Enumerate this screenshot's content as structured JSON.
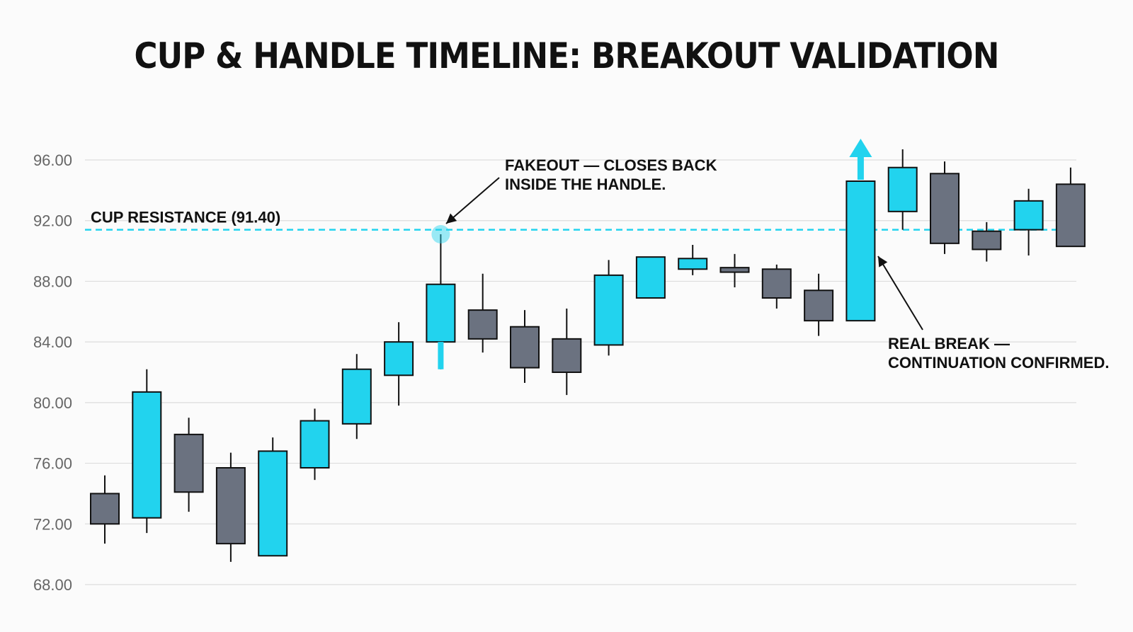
{
  "title": "CUP & HANDLE TIMELINE: BREAKOUT VALIDATION",
  "colors": {
    "bull": "#22d3ee",
    "bear": "#6b7280",
    "outline": "#111111",
    "resistance": "#22d3ee",
    "grid": "#dddddd",
    "tick_text": "#666666"
  },
  "chart_data": {
    "type": "candlestick",
    "title": "CUP & HANDLE TIMELINE: BREAKOUT VALIDATION",
    "xlabel": "",
    "ylabel": "",
    "ylim": [
      68,
      96
    ],
    "yticks": [
      "68.00",
      "72.00",
      "76.00",
      "80.00",
      "84.00",
      "88.00",
      "92.00",
      "96.00"
    ],
    "grid": true,
    "candles": [
      {
        "open": 74.0,
        "high": 75.2,
        "low": 70.7,
        "close": 72.0
      },
      {
        "open": 72.4,
        "high": 82.2,
        "low": 71.4,
        "close": 80.7
      },
      {
        "open": 77.9,
        "high": 79.0,
        "low": 72.8,
        "close": 74.1
      },
      {
        "open": 75.7,
        "high": 76.7,
        "low": 69.5,
        "close": 70.7
      },
      {
        "open": 69.9,
        "high": 77.7,
        "low": 69.9,
        "close": 76.8
      },
      {
        "open": 75.7,
        "high": 79.6,
        "low": 74.9,
        "close": 78.8
      },
      {
        "open": 78.6,
        "high": 83.2,
        "low": 77.6,
        "close": 82.2
      },
      {
        "open": 81.8,
        "high": 85.3,
        "low": 79.8,
        "close": 84.0
      },
      {
        "open": 84.0,
        "high": 91.1,
        "low": 82.2,
        "close": 87.8
      },
      {
        "open": 86.1,
        "high": 88.5,
        "low": 83.3,
        "close": 84.2
      },
      {
        "open": 85.0,
        "high": 86.1,
        "low": 81.3,
        "close": 82.3
      },
      {
        "open": 84.2,
        "high": 86.2,
        "low": 80.5,
        "close": 82.0
      },
      {
        "open": 83.8,
        "high": 89.4,
        "low": 83.1,
        "close": 88.4
      },
      {
        "open": 86.9,
        "high": 89.6,
        "low": 86.9,
        "close": 89.6
      },
      {
        "open": 88.8,
        "high": 90.4,
        "low": 88.4,
        "close": 89.5
      },
      {
        "open": 88.9,
        "high": 89.8,
        "low": 87.6,
        "close": 88.6
      },
      {
        "open": 88.8,
        "high": 89.1,
        "low": 86.2,
        "close": 86.9
      },
      {
        "open": 87.4,
        "high": 88.5,
        "low": 84.4,
        "close": 85.4
      },
      {
        "open": 85.4,
        "high": 94.6,
        "low": 85.4,
        "close": 94.6
      },
      {
        "open": 92.6,
        "high": 96.7,
        "low": 91.4,
        "close": 95.5
      },
      {
        "open": 95.1,
        "high": 95.9,
        "low": 89.8,
        "close": 90.5
      },
      {
        "open": 91.3,
        "high": 91.9,
        "low": 89.3,
        "close": 90.1
      },
      {
        "open": 91.4,
        "high": 94.1,
        "low": 89.7,
        "close": 93.3
      },
      {
        "open": 94.4,
        "high": 95.5,
        "low": 90.4,
        "close": 90.3
      }
    ],
    "resistance": {
      "value": 91.4,
      "label": "CUP RESISTANCE (91.40)"
    },
    "annotations": [
      {
        "lines": [
          "FAKEOUT — CLOSES BACK",
          "INSIDE THE HANDLE."
        ],
        "candle_index": 8
      },
      {
        "lines": [
          "REAL BREAK —",
          "CONTINUATION CONFIRMED."
        ],
        "candle_index": 18
      }
    ]
  }
}
